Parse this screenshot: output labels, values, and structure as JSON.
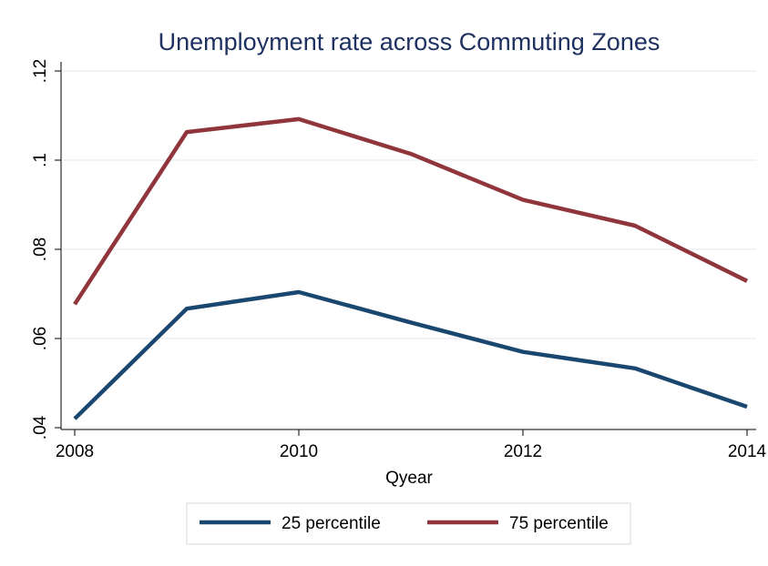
{
  "chart_data": {
    "type": "line",
    "title": "Unemployment rate across Commuting Zones",
    "xlabel": "Qyear",
    "ylabel": "",
    "x": [
      2008,
      2009,
      2010,
      2011,
      2012,
      2013,
      2014
    ],
    "xticks": [
      "2008",
      "2010",
      "2012",
      "2014"
    ],
    "yticks": [
      ".04",
      ".06",
      ".08",
      ".1",
      ".12"
    ],
    "xlim": [
      2008,
      2014
    ],
    "ylim": [
      0.04,
      0.12
    ],
    "grid": true,
    "legend_position": "bottom",
    "series": [
      {
        "name": "25 percentile",
        "color": "#1a476f",
        "values": [
          0.042,
          0.0667,
          0.0704,
          0.0636,
          0.057,
          0.0533,
          0.0447
        ]
      },
      {
        "name": "75 percentile",
        "color": "#90353b",
        "values": [
          0.0677,
          0.1063,
          0.1092,
          0.1014,
          0.0911,
          0.0853,
          0.0729
        ]
      }
    ]
  }
}
